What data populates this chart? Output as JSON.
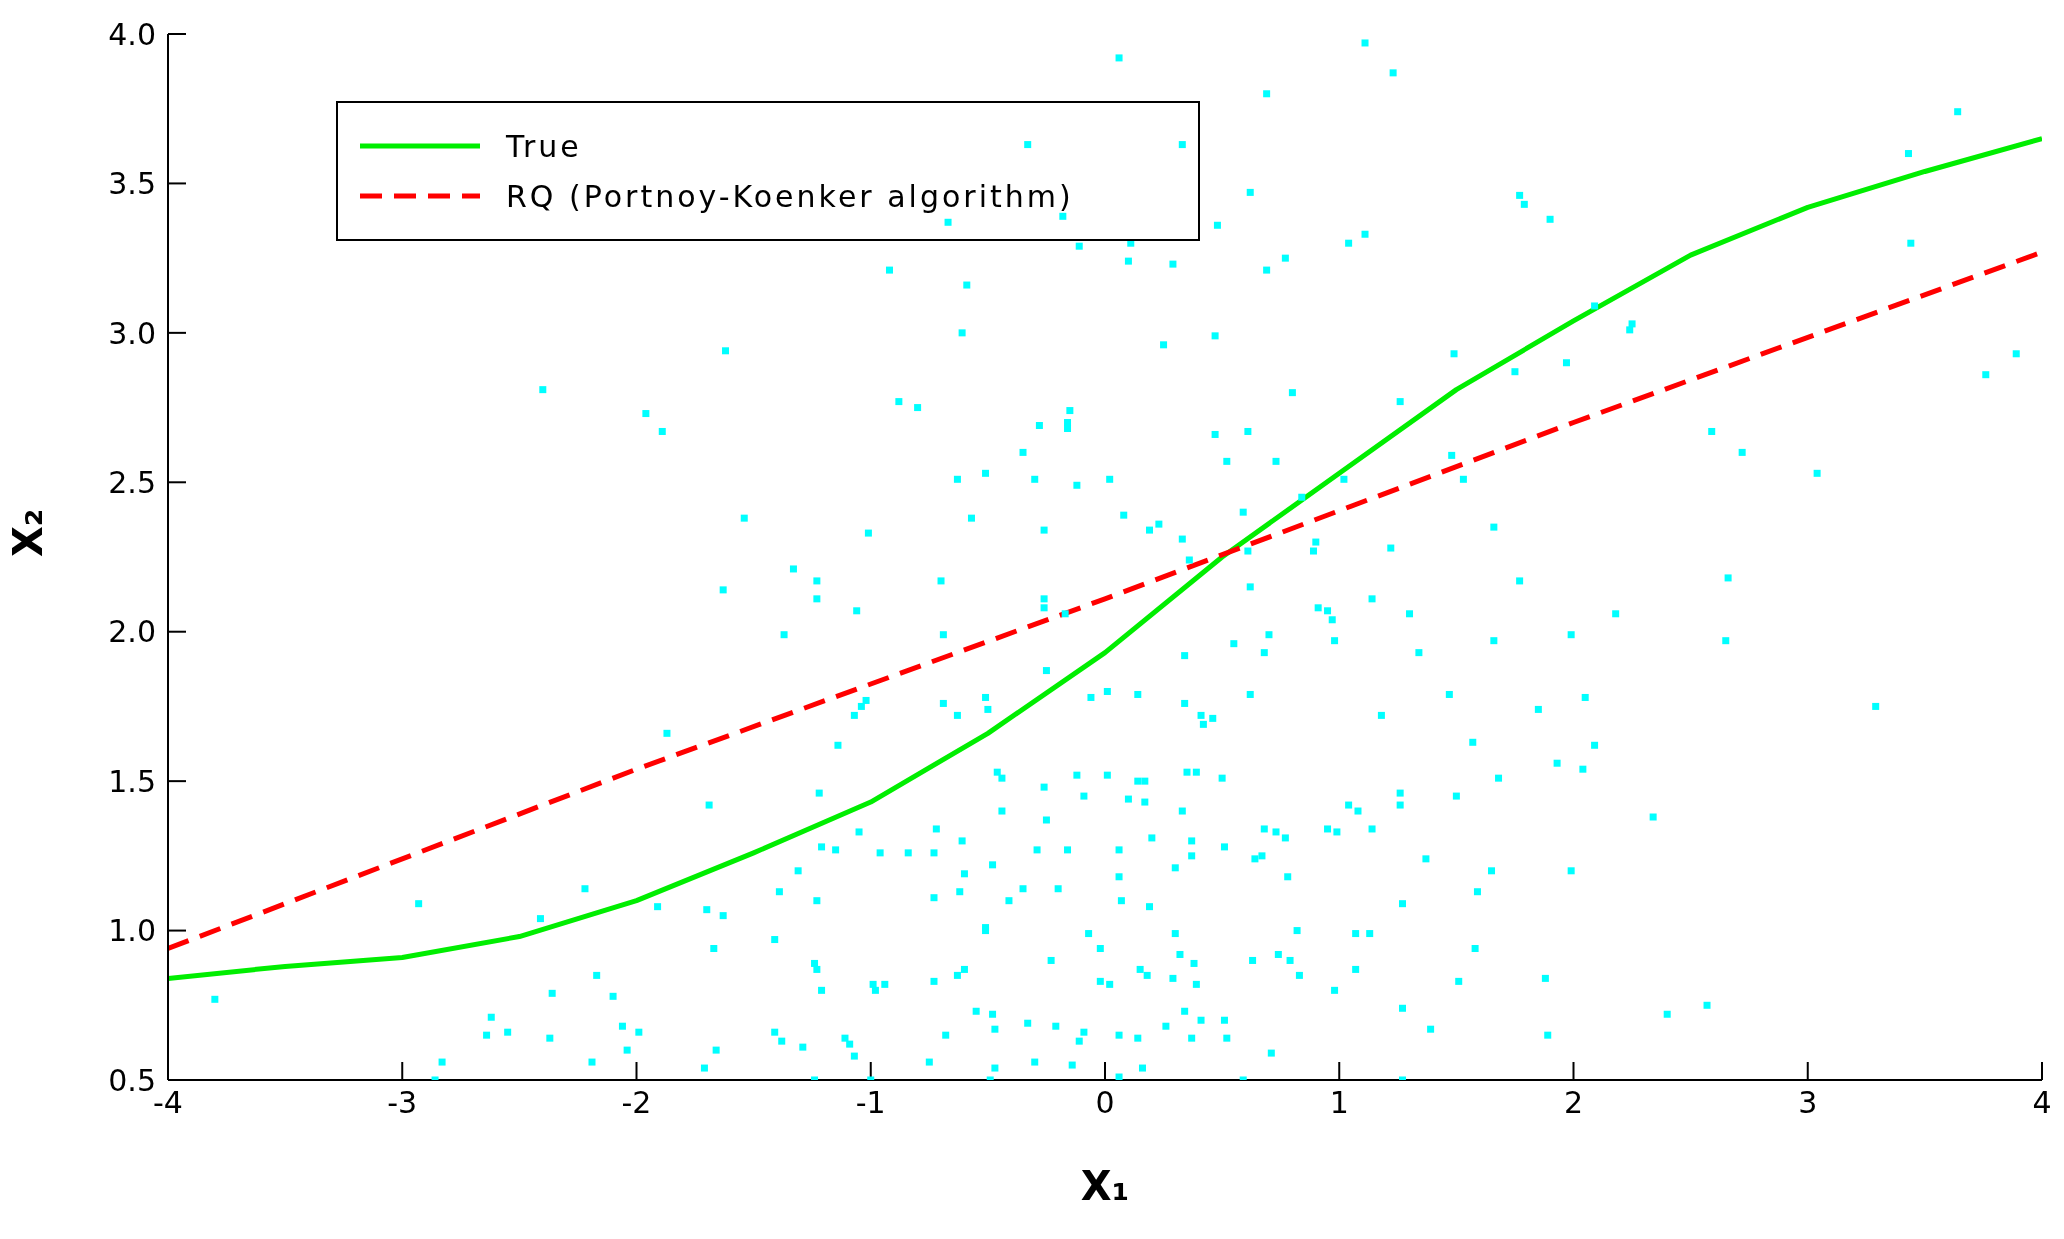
{
  "chart_data": {
    "type": "scatter",
    "xlabel": "X₁",
    "ylabel": "X₂",
    "xlim": [
      -4,
      4
    ],
    "ylim": [
      0.5,
      4.0
    ],
    "xticks": [
      -4,
      -3,
      -2,
      -1,
      0,
      1,
      2,
      3,
      4
    ],
    "yticks": [
      {
        "value": 0.5,
        "label": "0.5"
      },
      {
        "value": 1,
        "label": "1.0"
      },
      {
        "value": 1.5,
        "label": "1.5"
      },
      {
        "value": 2,
        "label": "2.0"
      },
      {
        "value": 2.5,
        "label": "2.5"
      },
      {
        "value": 3,
        "label": "3.0"
      },
      {
        "value": 3.5,
        "label": "3.5"
      },
      {
        "value": 4,
        "label": "4.0"
      }
    ],
    "grid": false,
    "legend": "top left",
    "series": [
      {
        "type": "scatter",
        "color": "#00ffff",
        "marker": "square",
        "x": [
          1.11,
          0.06,
          1.23,
          0.69,
          3.64,
          -0.33,
          0.33,
          3.43,
          0.62,
          1.77,
          1.79,
          1.9,
          -0.67,
          0.48,
          -0.18,
          1.11,
          3.44,
          0.11,
          -0.11,
          1.04,
          0.77,
          0.1,
          0.29,
          0.69,
          -0.92,
          -0.59,
          2.09,
          2.25,
          2.24,
          -0.61,
          0.47,
          -1.62,
          0.25,
          1.49,
          3.89,
          1.97,
          1.75,
          3.76,
          -2.4,
          0.8,
          -0.88,
          1.26,
          -0.8,
          -1.96,
          -0.15,
          -0.28,
          -0.16,
          -1.89,
          0.61,
          2.59,
          -0.16,
          0.47,
          2.72,
          -0.35,
          1.48,
          0.52,
          0.73,
          -0.51,
          1.53,
          -0.63,
          -0.3,
          0.02,
          1.02,
          3.04,
          -0.12,
          0.84,
          -1.54,
          0.08,
          -0.57,
          0.23,
          0.19,
          -0.26,
          1.66,
          -1.01,
          0.59,
          0.33,
          1.22,
          0.9,
          0.89,
          0.36,
          -1.33,
          0.61,
          -1.23,
          -0.7,
          2.66,
          1.77,
          -1.63,
          0.62,
          -1.23,
          -0.26,
          1.14,
          -0.26,
          -1.06,
          -0.17,
          0.91,
          0.95,
          2.18,
          0.97,
          1.3,
          -1.37,
          -0.69,
          1.99,
          0.7,
          0.98,
          2.65,
          0.55,
          1.66,
          1.34,
          -0.25,
          0.34,
          0.68,
          2.05,
          1.47,
          0.01,
          -0.06,
          -1.02,
          0.62,
          0.34,
          0.14,
          -0.51,
          -0.69,
          3.29,
          1.85,
          -1.04,
          -0.63,
          -0.5,
          -1.07,
          0.41,
          0.46,
          1.18,
          0.42,
          2.04,
          1.57,
          2.09,
          -1.14,
          -1.87,
          -1.69,
          1.93,
          1.68,
          -0.46,
          -0.44,
          0.5,
          -0.12,
          0.01,
          0.14,
          0.17,
          0.35,
          0.39,
          -1.22,
          -0.26,
          1.26,
          1.26,
          -0.09,
          0.1,
          0.17,
          0.33,
          -0.44,
          1.04,
          1.08,
          1.5,
          2.34,
          -0.25,
          0.95,
          0.68,
          1.14,
          0.73,
          0.99,
          -1.05,
          -0.72,
          0.2,
          0.77,
          0.37,
          -0.61,
          0.06,
          0.51,
          -1.21,
          -1.15,
          -0.84,
          -0.73,
          -0.29,
          -0.16,
          -0.96,
          0.37,
          1.37,
          0.64,
          0.67,
          -1.31,
          1.65,
          1.99,
          0.3,
          0.06,
          -0.6,
          0.78,
          -1.39,
          -2.22,
          -0.48,
          -0.35,
          -0.2,
          -0.73,
          -0.62,
          -0.41,
          0.07,
          -1.23,
          -1.91,
          -2.93,
          0.19,
          1.27,
          1.59,
          1.13,
          1.07,
          -2.41,
          -1.63,
          -1.7,
          -0.51,
          -0.51,
          0.3,
          0.82,
          -0.07,
          -1.41,
          -0.02,
          -1.67,
          1.58,
          0.74,
          0.79,
          -0.23,
          0.32,
          0.63,
          0.38,
          -1.24,
          -1.23,
          -0.6,
          0.18,
          0.15,
          -2.17,
          0.83,
          1.51,
          1.88,
          -0.73,
          -0.63,
          0.29,
          0.39,
          -0.02,
          0.02,
          -0.99,
          -0.98,
          -0.94,
          -1.21,
          0.98,
          -2.1,
          -3.8,
          -2.36,
          1.07,
          2.4,
          2.57,
          1.27,
          -2.62,
          -0.55,
          -0.48,
          0.34,
          0.41,
          0.51,
          -2.06,
          -2.64,
          -2.55,
          -0.33,
          -0.21,
          -0.09,
          0.26,
          -1.99,
          -1.41,
          -1.38,
          -2.37,
          -1.11,
          -0.68,
          -0.11,
          0.06,
          0.37,
          0.14,
          0.52,
          1.39,
          1.89,
          -0.47,
          -1.29,
          -2.04,
          -1.09,
          0.71,
          -1.66,
          -1.07,
          -0.3,
          -0.14,
          0.16,
          -0.75,
          -2.19,
          -2.83,
          -1.71,
          -0.47,
          -1.24,
          -1.0,
          -0.49,
          0.06,
          0.59,
          1.27,
          -2.86
        ],
        "values": [
          3.97,
          3.92,
          3.87,
          3.8,
          3.74,
          3.63,
          3.63,
          3.6,
          3.47,
          3.46,
          3.43,
          3.38,
          3.37,
          3.36,
          3.39,
          3.33,
          3.3,
          3.3,
          3.29,
          3.3,
          3.25,
          3.24,
          3.23,
          3.21,
          3.21,
          3.16,
          3.09,
          3.03,
          3.01,
          3.0,
          2.99,
          2.94,
          2.96,
          2.93,
          2.93,
          2.9,
          2.87,
          2.86,
          2.81,
          2.8,
          2.77,
          2.77,
          2.75,
          2.73,
          2.74,
          2.69,
          2.7,
          2.67,
          2.67,
          2.67,
          2.68,
          2.66,
          2.6,
          2.6,
          2.59,
          2.57,
          2.57,
          2.53,
          2.51,
          2.51,
          2.51,
          2.51,
          2.51,
          2.53,
          2.49,
          2.45,
          2.38,
          2.39,
          2.38,
          2.36,
          2.34,
          2.34,
          2.35,
          2.33,
          2.4,
          2.31,
          2.28,
          2.3,
          2.27,
          2.24,
          2.21,
          2.27,
          2.17,
          2.17,
          2.18,
          2.17,
          2.14,
          2.15,
          2.11,
          2.11,
          2.11,
          2.08,
          2.07,
          2.06,
          2.08,
          2.07,
          2.06,
          2.04,
          2.06,
          1.99,
          1.99,
          1.99,
          1.99,
          1.97,
          1.97,
          1.96,
          1.97,
          1.93,
          1.87,
          1.92,
          1.93,
          1.78,
          1.79,
          1.8,
          1.78,
          1.77,
          1.79,
          1.76,
          1.79,
          1.78,
          1.76,
          1.75,
          1.74,
          1.75,
          1.72,
          1.74,
          1.72,
          1.72,
          1.71,
          1.72,
          1.69,
          1.54,
          1.63,
          1.62,
          1.62,
          1.66,
          1.42,
          1.56,
          1.51,
          1.53,
          1.51,
          1.51,
          1.52,
          1.52,
          1.5,
          1.5,
          1.53,
          1.53,
          1.46,
          1.48,
          1.46,
          1.42,
          1.45,
          1.44,
          1.43,
          1.4,
          1.4,
          1.42,
          1.4,
          1.45,
          1.38,
          1.37,
          1.34,
          1.34,
          1.34,
          1.33,
          1.33,
          1.33,
          1.34,
          1.31,
          1.31,
          1.3,
          1.3,
          1.27,
          1.28,
          1.28,
          1.27,
          1.26,
          1.26,
          1.27,
          1.27,
          1.26,
          1.25,
          1.24,
          1.24,
          1.25,
          1.2,
          1.2,
          1.2,
          1.21,
          1.18,
          1.19,
          1.18,
          1.13,
          1.14,
          1.22,
          1.14,
          1.14,
          1.11,
          1.13,
          1.1,
          1.1,
          1.1,
          1.08,
          1.09,
          1.08,
          1.09,
          1.13,
          0.99,
          0.99,
          1.04,
          1.05,
          1.07,
          1.01,
          1.0,
          0.99,
          1.0,
          0.99,
          0.97,
          0.94,
          0.94,
          0.94,
          0.92,
          0.9,
          0.9,
          0.92,
          0.9,
          0.89,
          0.89,
          0.87,
          0.87,
          0.85,
          0.87,
          0.85,
          0.85,
          0.83,
          0.84,
          0.83,
          0.85,
          0.84,
          0.82,
          0.83,
          0.82,
          0.82,
          0.8,
          0.82,
          0.8,
          0.8,
          0.78,
          0.77,
          0.79,
          0.87,
          0.72,
          0.75,
          0.74,
          0.71,
          0.73,
          0.72,
          0.73,
          0.7,
          0.7,
          0.68,
          0.65,
          0.66,
          0.69,
          0.68,
          0.66,
          0.68,
          0.66,
          0.66,
          0.63,
          0.64,
          0.64,
          0.65,
          0.63,
          0.65,
          0.64,
          0.64,
          0.64,
          0.67,
          0.65,
          0.67,
          0.61,
          0.6,
          0.62,
          0.59,
          0.6,
          0.58,
          0.56,
          0.55,
          0.54,
          0.56,
          0.56,
          0.56,
          0.54,
          0.54,
          0.5,
          0.5,
          0.5,
          0.51,
          0.5,
          0.5,
          0.5
        ]
      },
      {
        "type": "line",
        "name": "True",
        "color": "#00ee00",
        "line_style": "solid",
        "x": [
          -4,
          -3.5,
          -3,
          -2.5,
          -2,
          -1.5,
          -1,
          -0.5,
          0,
          0.5,
          1,
          1.5,
          2,
          2.5,
          3,
          3.5,
          4
        ],
        "values": [
          0.84,
          0.88,
          0.91,
          0.98,
          1.1,
          1.26,
          1.43,
          1.66,
          1.93,
          2.25,
          2.53,
          2.81,
          3.04,
          3.26,
          3.42,
          3.54,
          3.65
        ]
      },
      {
        "type": "line",
        "name": "RQ (Portnoy-Koenker algorithm)",
        "color": "#ff0000",
        "line_style": "dashed",
        "x": [
          -4,
          -2,
          0,
          2,
          4
        ],
        "values": [
          0.94,
          1.54,
          2.11,
          2.7,
          3.27
        ]
      }
    ]
  }
}
